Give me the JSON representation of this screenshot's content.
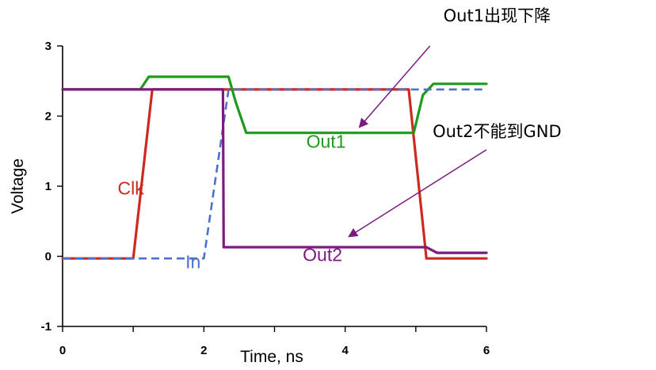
{
  "chart_data": {
    "type": "line",
    "title": "",
    "xlabel": "Time, ns",
    "ylabel": "Voltage",
    "xlim": [
      0,
      6
    ],
    "ylim": [
      -1,
      3
    ],
    "x_ticks": [
      "0",
      "2",
      "4",
      "6"
    ],
    "y_ticks": [
      "3",
      "2",
      "1",
      "0",
      "-1"
    ],
    "grid": false,
    "colors": {
      "Clk": "#cc2a1e",
      "In": "#4a72c8",
      "Out1": "#1f9a1f",
      "Out2": "#7c1a80",
      "arrow": "#7c1a80"
    },
    "series": [
      {
        "name": "Clk",
        "style": "solid",
        "x": [
          0,
          1.0,
          1.27,
          4.9,
          5.15,
          6
        ],
        "y": [
          -0.03,
          -0.03,
          2.38,
          2.38,
          -0.03,
          -0.03
        ]
      },
      {
        "name": "In",
        "style": "dashed",
        "x": [
          0,
          2.0,
          2.35,
          6
        ],
        "y": [
          -0.03,
          -0.03,
          2.38,
          2.38
        ]
      },
      {
        "name": "Out1",
        "style": "solid",
        "x": [
          0,
          1.1,
          1.22,
          2.35,
          2.45,
          2.6,
          4.83,
          4.97,
          5.1,
          5.25,
          6
        ],
        "y": [
          2.38,
          2.38,
          2.56,
          2.56,
          2.2,
          1.76,
          1.76,
          1.76,
          2.3,
          2.46,
          2.46
        ]
      },
      {
        "name": "Out2",
        "style": "solid",
        "x": [
          0,
          2.27,
          2.28,
          5.15,
          5.3,
          6
        ],
        "y": [
          2.38,
          2.38,
          0.13,
          0.13,
          0.05,
          0.05
        ]
      }
    ],
    "series_labels": [
      {
        "series": "Clk",
        "text": "Clk",
        "x": 0.78,
        "y": 0.88
      },
      {
        "series": "In",
        "text": "In",
        "x": 1.74,
        "y": -0.17
      },
      {
        "series": "Out1",
        "text": "Out1",
        "x": 3.45,
        "y": 1.55
      },
      {
        "series": "Out2",
        "text": "Out2",
        "x": 3.4,
        "y": -0.07
      }
    ],
    "annotations": [
      {
        "text": "Out1出现下降",
        "x": 6.15,
        "y": 3.35,
        "arrow_from": [
          5.2,
          3.0
        ],
        "arrow_to": [
          4.2,
          1.84
        ]
      },
      {
        "text": "Out2不能到GND",
        "x": 6.15,
        "y": 1.7,
        "arrow_from": [
          6.0,
          1.52
        ],
        "arrow_to": [
          4.05,
          0.28
        ]
      }
    ]
  }
}
